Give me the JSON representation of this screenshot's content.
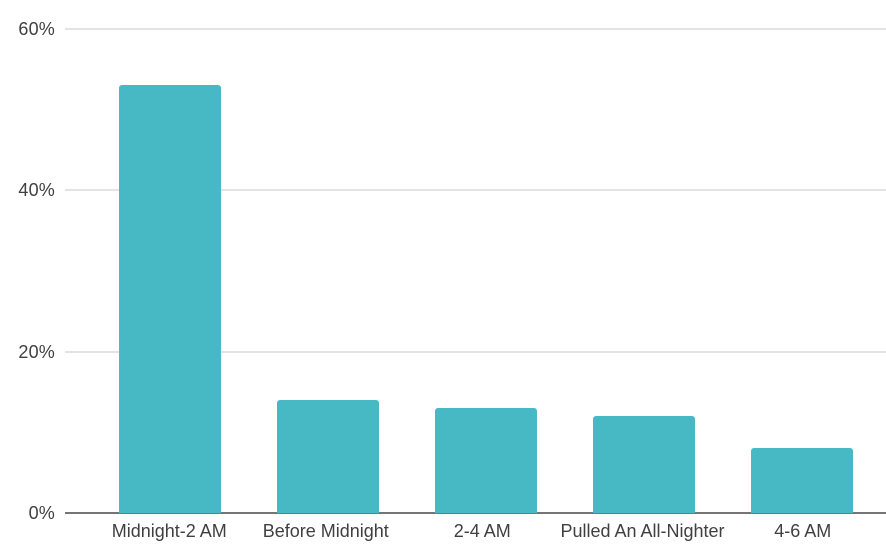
{
  "chart_data": {
    "type": "bar",
    "title": "",
    "categories": [
      "Midnight-2 AM",
      "Before Midnight",
      "2-4 AM",
      "Pulled An All-Nighter",
      "4-6 AM"
    ],
    "values": [
      53,
      14,
      13,
      12,
      8
    ],
    "value_unit": "%",
    "xlabel": "",
    "ylabel": "",
    "y_ticks": [
      0,
      20,
      40,
      60
    ],
    "y_tick_labels": [
      "0%",
      "20%",
      "40%",
      "60%"
    ],
    "ylim": [
      0,
      63.5
    ],
    "grid": true,
    "legend": false
  },
  "colors": {
    "background": "#ffffff",
    "bar": "#46b9c4",
    "gridline": "#e3e3e3",
    "axis_line": "#757575",
    "label_text": "#404040"
  }
}
